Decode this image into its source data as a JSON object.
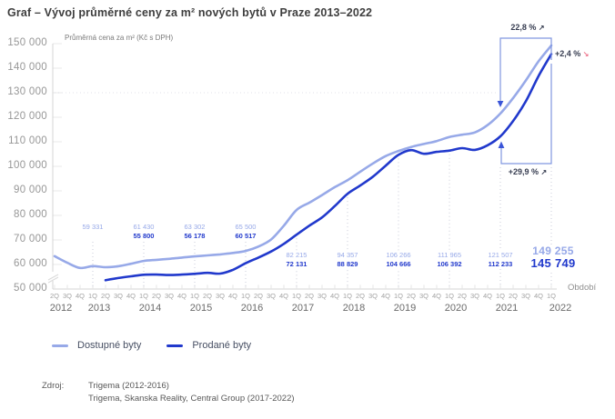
{
  "header": {
    "title": "Graf – Vývoj průměrné ceny za m² nových bytů v Praze 2013–2022"
  },
  "colors": {
    "light_series": "#97A9E8",
    "dark_series": "#2139CC",
    "bracket": "#8096E0",
    "arrowhead": "#3A55D8",
    "pink_arrow": "#EF7B92",
    "axis": "#D4D4D4",
    "tick": "#E4E4E4",
    "dotted": "#C9CBD8"
  },
  "chart_data": {
    "type": "line",
    "title": "Graf – Vývoj průměrné ceny za m² nových bytů v Praze 2013–2022",
    "ylabel": "Průměrná cena za m² (Kč s DPH)",
    "xlabel": "Období",
    "ylim": [
      50000,
      150000
    ],
    "ytick_step": 10000,
    "grid": "off",
    "legend_position": "bottom",
    "quarter_labels": [
      "2Q",
      "3Q",
      "4Q",
      "1Q",
      "2Q",
      "3Q",
      "4Q",
      "1Q",
      "2Q",
      "3Q",
      "4Q",
      "1Q",
      "2Q",
      "3Q",
      "4Q",
      "1Q",
      "2Q",
      "3Q",
      "4Q",
      "1Q",
      "2Q",
      "3Q",
      "4Q",
      "1Q",
      "2Q",
      "3Q",
      "4Q",
      "1Q",
      "2Q",
      "3Q",
      "4Q",
      "1Q",
      "2Q",
      "3Q",
      "4Q",
      "1Q",
      "2Q",
      "3Q",
      "4Q",
      "1Q"
    ],
    "years": [
      {
        "label": "2012",
        "from": 0,
        "single": false
      },
      {
        "label": "2013",
        "from": 3,
        "single": false
      },
      {
        "label": "2014",
        "from": 7,
        "single": false
      },
      {
        "label": "2015",
        "from": 11,
        "single": false
      },
      {
        "label": "2016",
        "from": 15,
        "single": false
      },
      {
        "label": "2017",
        "from": 19,
        "single": false
      },
      {
        "label": "2018",
        "from": 23,
        "single": false
      },
      {
        "label": "2019",
        "from": 27,
        "single": false
      },
      {
        "label": "2020",
        "from": 31,
        "single": false
      },
      {
        "label": "2021",
        "from": 35,
        "single": false
      },
      {
        "label": "2022",
        "from": 39,
        "single": true
      }
    ],
    "series": [
      {
        "name": "Dostupné byty",
        "key": "light",
        "values": [
          63400,
          60700,
          58600,
          59331,
          58900,
          59300,
          60300,
          61430,
          61900,
          62300,
          62800,
          63302,
          63700,
          64100,
          64700,
          65500,
          67300,
          70200,
          75800,
          82215,
          85200,
          88300,
          91500,
          94357,
          97800,
          101200,
          104200,
          106266,
          107900,
          109100,
          110300,
          111965,
          112900,
          113800,
          116800,
          121507,
          127800,
          135000,
          142800,
          149255
        ]
      },
      {
        "name": "Prodané byty",
        "key": "dark",
        "values": [
          null,
          null,
          null,
          null,
          53600,
          54500,
          55200,
          55800,
          55900,
          55700,
          55900,
          56178,
          56600,
          56300,
          57800,
          60517,
          62800,
          65300,
          68400,
          72131,
          75800,
          79200,
          83800,
          88829,
          92200,
          95800,
          100300,
          104666,
          106600,
          105100,
          105900,
          106392,
          107400,
          106700,
          108600,
          112233,
          118500,
          126500,
          136800,
          145749
        ]
      }
    ],
    "annual_labels": [
      {
        "x_index": 3,
        "light": "59 331",
        "dark": null,
        "big": false
      },
      {
        "x_index": 7,
        "light": "61 430",
        "dark": "55 800",
        "big": false
      },
      {
        "x_index": 11,
        "light": "63 302",
        "dark": "56 178",
        "big": false
      },
      {
        "x_index": 15,
        "light": "65 500",
        "dark": "60 517",
        "big": false
      },
      {
        "x_index": 19,
        "light": "82 215",
        "dark": "72 131",
        "big": false
      },
      {
        "x_index": 23,
        "light": "94 357",
        "dark": "88 829",
        "big": false
      },
      {
        "x_index": 27,
        "light": "106 266",
        "dark": "104 666",
        "big": false
      },
      {
        "x_index": 31,
        "light": "111 965",
        "dark": "106 392",
        "big": false
      },
      {
        "x_index": 35,
        "light": "121 507",
        "dark": "112 233",
        "big": false
      },
      {
        "x_index": 39,
        "light": "149 255",
        "dark": "145 749",
        "big": true
      }
    ],
    "annotations": {
      "growth_light": {
        "text": "22,8 %",
        "arrow": "↗"
      },
      "growth_dark": {
        "text": "+29,9 %",
        "arrow": "↗"
      },
      "gap": {
        "text": "+2,4 %",
        "arrow": "↘"
      }
    }
  },
  "source": {
    "label": "Zdroj:",
    "lines": [
      "Trigema (2012-2016)",
      "Trigema, Skanska Reality, Central Group (2017-2022)"
    ]
  }
}
